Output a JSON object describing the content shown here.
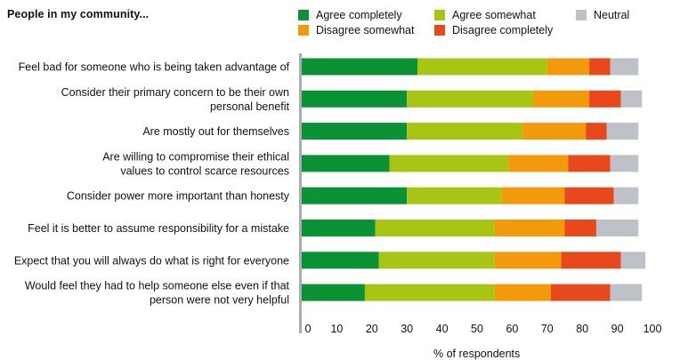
{
  "chart_data": {
    "type": "bar",
    "orientation": "horizontal",
    "stacked": true,
    "title": "People in my community...",
    "xlabel": "% of respondents",
    "xlim": [
      0,
      100
    ],
    "xticks": [
      0,
      10,
      20,
      30,
      40,
      50,
      60,
      70,
      80,
      90,
      100
    ],
    "categories": [
      [
        "Feel bad for someone who is being taken advantage of"
      ],
      [
        "Consider their primary concern to be their own",
        "personal benefit"
      ],
      [
        "Are mostly out for themselves"
      ],
      [
        "Are willing to compromise their ethical",
        "values to control scarce resources"
      ],
      [
        "Consider power more important than honesty"
      ],
      [
        "Feel it is better to assume responsibility for a mistake"
      ],
      [
        "Expect that you will always do what is right for everyone"
      ],
      [
        "Would feel they had to help someone else even if that",
        "person were not very helpful"
      ]
    ],
    "series": [
      {
        "name": "Agree completely",
        "color": "#0b9235",
        "values": [
          33,
          30,
          30,
          25,
          30,
          21,
          22,
          18
        ]
      },
      {
        "name": "Agree somewhat",
        "color": "#a8c515",
        "values": [
          37,
          36,
          33,
          34,
          27,
          34,
          33,
          37
        ]
      },
      {
        "name": "Disagree somewhat",
        "color": "#f29a0c",
        "values": [
          12,
          16,
          18,
          17,
          18,
          20,
          19,
          16
        ]
      },
      {
        "name": "Disagree completely",
        "color": "#e8491c",
        "values": [
          6,
          9,
          6,
          12,
          14,
          9,
          17,
          17
        ]
      },
      {
        "name": "Neutral",
        "color": "#bec2c8",
        "values": [
          8,
          6,
          9,
          8,
          7,
          12,
          7,
          9
        ]
      }
    ],
    "legend_placement": "top",
    "grid": false
  }
}
